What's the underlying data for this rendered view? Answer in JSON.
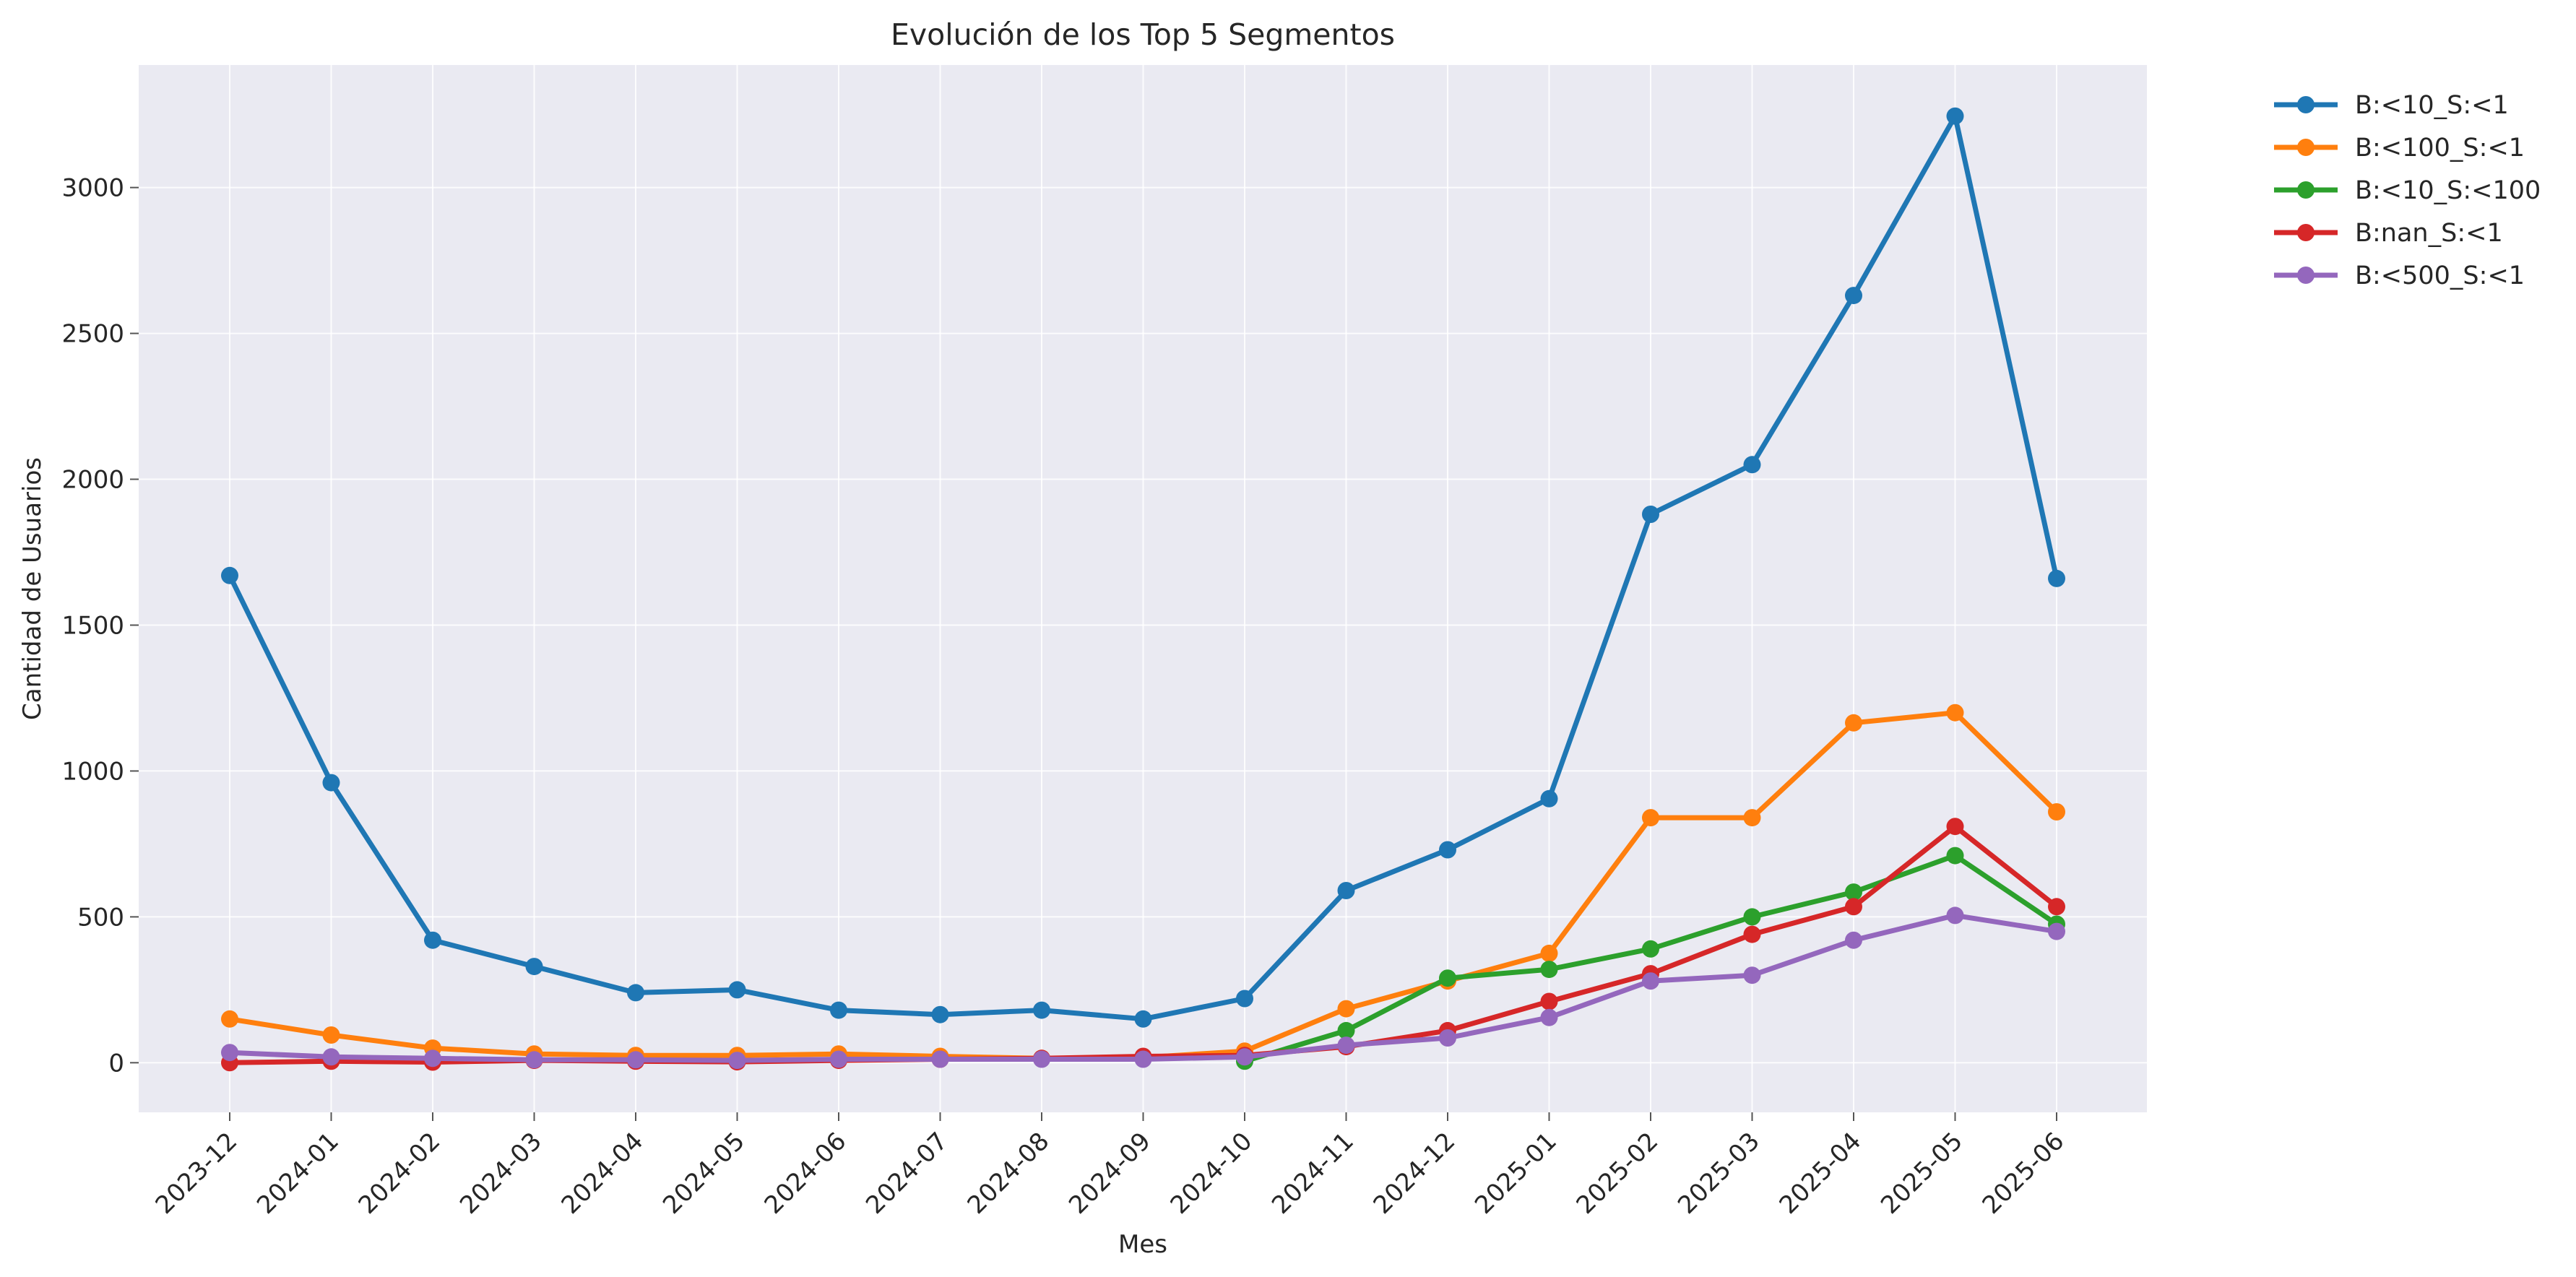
{
  "chart_data": {
    "type": "line",
    "title": "Evolución de los Top 5 Segmentos",
    "xlabel": "Mes",
    "ylabel": "Cantidad de Usuarios",
    "categories": [
      "2023-12",
      "2024-01",
      "2024-02",
      "2024-03",
      "2024-04",
      "2024-05",
      "2024-06",
      "2024-07",
      "2024-08",
      "2024-09",
      "2024-10",
      "2024-11",
      "2024-12",
      "2025-01",
      "2025-02",
      "2025-03",
      "2025-04",
      "2025-05",
      "2025-06"
    ],
    "ylim": [
      -170,
      3420
    ],
    "yticks": [
      0,
      500,
      1000,
      1500,
      2000,
      2500,
      3000
    ],
    "grid": true,
    "legend": "outside-top-right",
    "series": [
      {
        "name": "B:<10_S:<1",
        "color": "#1f77b4",
        "values": [
          1670,
          960,
          420,
          330,
          240,
          250,
          180,
          165,
          180,
          150,
          220,
          590,
          730,
          905,
          1880,
          2050,
          2630,
          3245,
          1660
        ]
      },
      {
        "name": "B:<100_S:<1",
        "color": "#ff7f0e",
        "values": [
          150,
          95,
          50,
          30,
          25,
          25,
          30,
          22,
          15,
          18,
          40,
          185,
          280,
          375,
          840,
          840,
          1165,
          1200,
          860
        ]
      },
      {
        "name": "B:<10_S:<100",
        "color": "#2ca02c",
        "values": [
          null,
          null,
          null,
          null,
          null,
          null,
          null,
          null,
          null,
          null,
          5,
          110,
          290,
          320,
          390,
          500,
          585,
          710,
          475
        ]
      },
      {
        "name": "B:nan_S:<1",
        "color": "#d62728",
        "values": [
          0,
          5,
          2,
          8,
          5,
          3,
          8,
          12,
          15,
          22,
          25,
          55,
          110,
          210,
          305,
          440,
          535,
          810,
          535
        ]
      },
      {
        "name": "B:<500_S:<1",
        "color": "#9467bd",
        "values": [
          35,
          20,
          15,
          10,
          10,
          8,
          12,
          12,
          12,
          12,
          20,
          60,
          85,
          155,
          280,
          300,
          420,
          505,
          450
        ]
      }
    ]
  }
}
